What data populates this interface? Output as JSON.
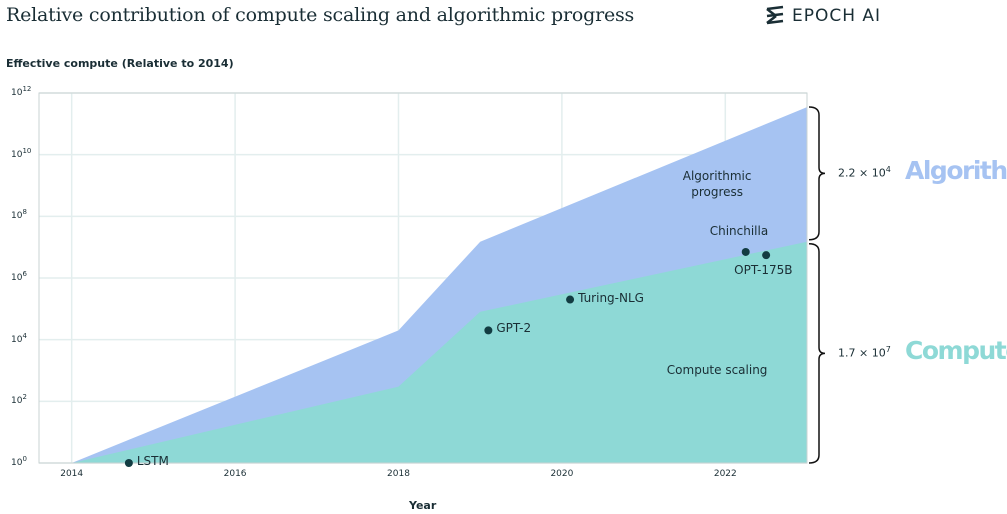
{
  "title": "Relative contribution of compute scaling and algorithmic progress",
  "logo": {
    "icon": "epoch-logo-icon",
    "text": "EPOCH AI"
  },
  "chart_data": {
    "type": "area",
    "ylabel": "Effective compute (Relative to 2014)",
    "xlabel": "Year",
    "yscale": "log",
    "xlim": [
      2013.6,
      2023.0
    ],
    "ylim_exponents": [
      0,
      12
    ],
    "x_ticks": [
      "2014",
      "2016",
      "2018",
      "2020",
      "2022"
    ],
    "x_tick_values": [
      2014,
      2016,
      2018,
      2020,
      2022
    ],
    "y_ticks": [
      {
        "base": "10",
        "exp": "0",
        "value": 1
      },
      {
        "base": "10",
        "exp": "2",
        "value": 100
      },
      {
        "base": "10",
        "exp": "4",
        "value": 10000
      },
      {
        "base": "10",
        "exp": "6",
        "value": 1000000
      },
      {
        "base": "10",
        "exp": "8",
        "value": 100000000
      },
      {
        "base": "10",
        "exp": "10",
        "value": 10000000000
      },
      {
        "base": "10",
        "exp": "12",
        "value": 1000000000000
      }
    ],
    "grid": true,
    "series": [
      {
        "name": "Compute scaling",
        "color": "#8ed9d6",
        "points": [
          [
            2014.0,
            1
          ],
          [
            2018.0,
            300
          ],
          [
            2019.0,
            80000
          ],
          [
            2023.0,
            15000000
          ]
        ]
      },
      {
        "name": "Algorithmic progress",
        "color": "#a6c3f2",
        "points": [
          [
            2014.0,
            1
          ],
          [
            2018.0,
            20000
          ],
          [
            2019.0,
            15000000
          ],
          [
            2023.0,
            350000000000
          ]
        ]
      }
    ],
    "area_labels": [
      {
        "lines": [
          "Algorithmic",
          "progress"
        ],
        "x": 2021.9,
        "y": 1000000000
      },
      {
        "lines": [
          "Compute scaling"
        ],
        "x": 2021.9,
        "y": 1000
      }
    ],
    "points": [
      {
        "label": "LSTM",
        "x": 2014.7,
        "y": 1,
        "label_pos": "right"
      },
      {
        "label": "GPT-2",
        "x": 2019.1,
        "y": 20000,
        "label_pos": "right"
      },
      {
        "label": "Turing-NLG",
        "x": 2020.1,
        "y": 200000,
        "label_pos": "right"
      },
      {
        "label": "Chinchilla",
        "x": 2022.25,
        "y": 7000000,
        "label_pos": "above"
      },
      {
        "label": "OPT-175B",
        "x": 2022.5,
        "y": 5500000,
        "label_pos": "below"
      }
    ],
    "brackets": [
      {
        "value_base": "2.2 × 10",
        "value_exp": "4",
        "name": "Algorithm",
        "color": "#a6c3f2"
      },
      {
        "value_base": "1.7 × 10",
        "value_exp": "7",
        "name": "Compute",
        "color": "#8ed9d6"
      }
    ]
  }
}
